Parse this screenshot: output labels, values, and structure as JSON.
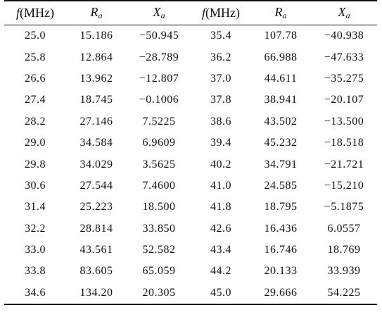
{
  "table": {
    "headers": [
      {
        "main": "f",
        "unit": "(MHz)",
        "sub": ""
      },
      {
        "main": "R",
        "unit": "",
        "sub": "a"
      },
      {
        "main": "X",
        "unit": "",
        "sub": "a"
      },
      {
        "main": "f",
        "unit": "(MHz)",
        "sub": ""
      },
      {
        "main": "R",
        "unit": "",
        "sub": "a"
      },
      {
        "main": "X",
        "unit": "",
        "sub": "a"
      }
    ],
    "rows": [
      [
        "25.0",
        "15.186",
        "−50.945",
        "35.4",
        "107.78",
        "−40.938"
      ],
      [
        "25.8",
        "12.864",
        "−28.789",
        "36.2",
        "66.988",
        "−47.633"
      ],
      [
        "26.6",
        "13.962",
        "−12.807",
        "37.0",
        "44.611",
        "−35.275"
      ],
      [
        "27.4",
        "18.745",
        "−0.1006",
        "37.8",
        "38.941",
        "−20.107"
      ],
      [
        "28.2",
        "27.146",
        "7.5225",
        "38.6",
        "43.502",
        "−13.500"
      ],
      [
        "29.0",
        "34.584",
        "6.9609",
        "39.4",
        "45.232",
        "−18.518"
      ],
      [
        "29.8",
        "34.029",
        "3.5625",
        "40.2",
        "34.791",
        "−21.721"
      ],
      [
        "30.6",
        "27.544",
        "7.4600",
        "41.0",
        "24.585",
        "−15.210"
      ],
      [
        "31.4",
        "25.223",
        "18.500",
        "41.8",
        "18.795",
        "−5.1875"
      ],
      [
        "32.2",
        "28.814",
        "33.850",
        "42.6",
        "16.436",
        "6.0557"
      ],
      [
        "33.0",
        "43.561",
        "52.582",
        "43.4",
        "16.746",
        "18.769"
      ],
      [
        "33.8",
        "83.605",
        "65.059",
        "44.2",
        "20.133",
        "33.939"
      ],
      [
        "34.6",
        "134.20",
        "20.305",
        "45.0",
        "29.666",
        "54.225"
      ]
    ]
  }
}
